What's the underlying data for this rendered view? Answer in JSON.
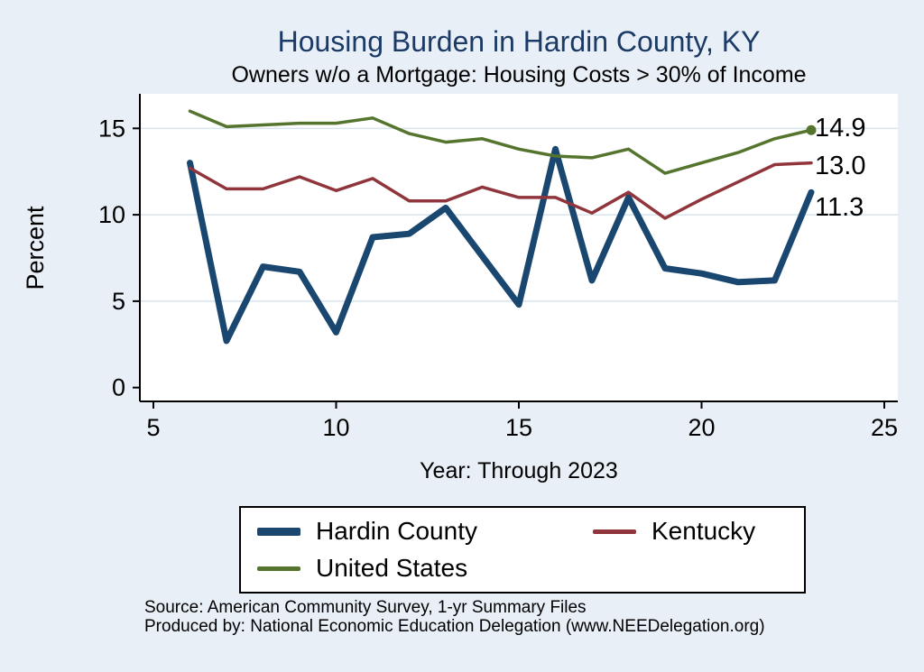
{
  "title": "Housing Burden in Hardin County, KY",
  "subtitle": "Owners w/o a Mortgage: Housing Costs > 30% of Income",
  "colors": {
    "background": "#e8eff7",
    "plot_background": "#ffffff",
    "grid": "#d6e4f0",
    "axis": "#000000",
    "title": "#1b3a66",
    "hardin": "#1a476f",
    "kentucky": "#90353b",
    "us": "#55752f"
  },
  "chart_data": {
    "type": "line",
    "title": "Housing Burden in Hardin County, KY",
    "subtitle": "Owners w/o a Mortgage: Housing Costs > 30% of Income",
    "xlabel": "Year: Through 2023",
    "ylabel": "Percent",
    "xticks": [
      5,
      10,
      15,
      20,
      25
    ],
    "yticks": [
      0,
      5,
      10,
      15
    ],
    "xlim": [
      4.63,
      25.37
    ],
    "ylim": [
      -0.8,
      17
    ],
    "grid": "horizontal",
    "legend_position": "bottom",
    "x": [
      6,
      7,
      8,
      9,
      10,
      11,
      12,
      13,
      14,
      15,
      16,
      17,
      18,
      19,
      20,
      21,
      22,
      23
    ],
    "series": [
      {
        "name": "Hardin County",
        "color_key": "hardin",
        "width": 7,
        "end_label": "11.3",
        "end_marker": false,
        "values": [
          13.0,
          2.7,
          7.0,
          6.7,
          3.2,
          8.7,
          8.9,
          10.4,
          7.6,
          4.8,
          13.8,
          6.2,
          11.0,
          6.9,
          6.6,
          6.1,
          6.2,
          11.3
        ]
      },
      {
        "name": "Kentucky",
        "color_key": "kentucky",
        "width": 3.5,
        "end_label": "13.0",
        "end_marker": false,
        "values": [
          12.7,
          11.5,
          11.5,
          12.2,
          11.4,
          12.1,
          10.8,
          10.8,
          11.6,
          11.0,
          11.0,
          10.1,
          11.3,
          9.8,
          10.9,
          11.9,
          12.9,
          13.0
        ]
      },
      {
        "name": "United States",
        "color_key": "us",
        "width": 3.5,
        "end_label": "14.9",
        "end_marker": true,
        "values": [
          16.0,
          15.1,
          15.2,
          15.3,
          15.3,
          15.6,
          14.7,
          14.2,
          14.4,
          13.8,
          13.4,
          13.3,
          13.8,
          12.4,
          13.0,
          13.6,
          14.4,
          14.9
        ]
      }
    ]
  },
  "source": {
    "line1": "Source: American Community Survey, 1-yr Summary Files",
    "line2": "Produced by: National Economic Education Delegation (www.NEEDelegation.org)"
  }
}
